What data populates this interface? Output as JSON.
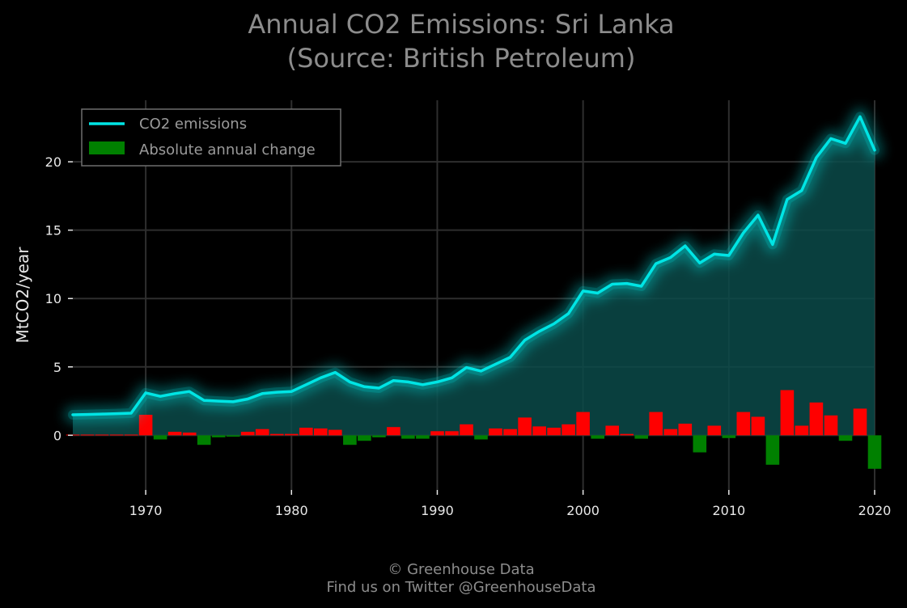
{
  "chart_data": {
    "type": "line",
    "title": "Annual CO2 Emissions: Sri Lanka",
    "subtitle": "(Source: British Petroleum)",
    "ylabel": "MtCO2/year",
    "xlabel": "",
    "xlim": [
      1965,
      2020
    ],
    "ylim": [
      -4,
      24.5
    ],
    "xticks": [
      "1970",
      "1980",
      "1990",
      "2000",
      "2010",
      "2020"
    ],
    "yticks": [
      "0",
      "5",
      "10",
      "15",
      "20"
    ],
    "grid": true,
    "legend_position": "top-left",
    "x": [
      1965,
      1966,
      1967,
      1968,
      1969,
      1970,
      1971,
      1972,
      1973,
      1974,
      1975,
      1976,
      1977,
      1978,
      1979,
      1980,
      1981,
      1982,
      1983,
      1984,
      1985,
      1986,
      1987,
      1988,
      1989,
      1990,
      1991,
      1992,
      1993,
      1994,
      1995,
      1996,
      1997,
      1998,
      1999,
      2000,
      2001,
      2002,
      2003,
      2004,
      2005,
      2006,
      2007,
      2008,
      2009,
      2010,
      2011,
      2012,
      2013,
      2014,
      2015,
      2016,
      2017,
      2018,
      2019,
      2020
    ],
    "series": [
      {
        "name": "CO2 emissions",
        "kind": "line",
        "color": "#00e5e5",
        "values": [
          1.5,
          1.52,
          1.55,
          1.58,
          1.62,
          3.1,
          2.85,
          3.05,
          3.2,
          2.55,
          2.5,
          2.45,
          2.65,
          3.05,
          3.15,
          3.2,
          3.7,
          4.2,
          4.6,
          3.9,
          3.55,
          3.45,
          4.0,
          3.9,
          3.7,
          3.9,
          4.2,
          4.95,
          4.7,
          5.2,
          5.7,
          6.95,
          7.6,
          8.15,
          8.9,
          10.55,
          10.4,
          11.05,
          11.1,
          10.9,
          12.55,
          13.0,
          13.85,
          12.6,
          13.25,
          13.15,
          14.8,
          16.1,
          13.95,
          17.25,
          17.9,
          20.3,
          21.7,
          21.35,
          23.3,
          20.85
        ]
      },
      {
        "name": "Absolute annual change",
        "kind": "bar",
        "color_positive": "#ff0000",
        "color_negative": "#008000",
        "legend_color": "#008000",
        "values": [
          0.05,
          0.05,
          0.05,
          0.05,
          0.05,
          1.5,
          -0.3,
          0.25,
          0.2,
          -0.7,
          -0.15,
          -0.1,
          0.25,
          0.45,
          0.1,
          0.1,
          0.55,
          0.5,
          0.4,
          -0.7,
          -0.4,
          -0.15,
          0.6,
          -0.25,
          -0.25,
          0.3,
          0.3,
          0.8,
          -0.3,
          0.5,
          0.45,
          1.3,
          0.65,
          0.55,
          0.8,
          1.7,
          -0.25,
          0.7,
          0.1,
          -0.25,
          1.7,
          0.45,
          0.85,
          -1.25,
          0.7,
          -0.2,
          1.7,
          1.35,
          -2.15,
          3.3,
          0.7,
          2.4,
          1.45,
          -0.4,
          1.95,
          -2.45
        ]
      }
    ]
  },
  "colors": {
    "background": "#000000",
    "grid": "#2e2e2e",
    "area_fill": "#0a4a49",
    "line": "#00e5e5",
    "text_dim": "#8c8c8c"
  },
  "credits": {
    "line1": "© Greenhouse Data",
    "line2": "Find us on Twitter @GreenhouseData"
  }
}
